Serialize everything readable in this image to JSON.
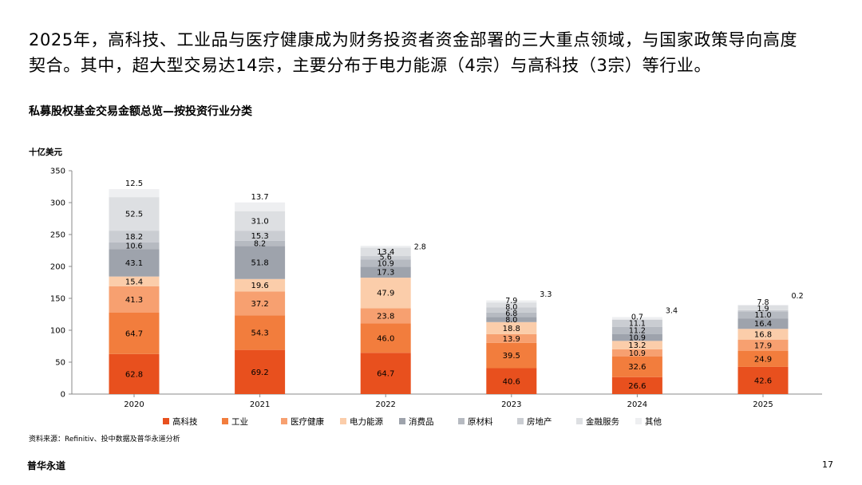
{
  "headline": {
    "line1": "2025年，高科技、工业品与医疗健康成为财务投资者资金部署的三大重点领域，与国家政策导向高度",
    "line2": "契合。其中，超大型交易达14宗，主要分布于电力能源（4宗）与高科技（3宗）等行业。"
  },
  "chart_title": "私募股权基金交易金额总览—按投资行业分类",
  "source_note": "资料来源：Refinitiv、投中数据及普华永道分析",
  "footer": {
    "brand": "普华永道",
    "page_number": "17"
  },
  "chart_data": {
    "type": "bar",
    "stacked": true,
    "unit_label": "十亿美元",
    "categories": [
      "2020",
      "2021",
      "2022",
      "2023",
      "2024",
      "2025"
    ],
    "ylim": [
      0,
      350
    ],
    "yticks": [
      0,
      50,
      100,
      150,
      200,
      250,
      300,
      350
    ],
    "legend_position": "bottom",
    "series": [
      {
        "name": "高科技",
        "color": "#E8501E",
        "values": [
          62.8,
          69.2,
          64.7,
          40.6,
          26.6,
          42.6
        ]
      },
      {
        "name": "工业",
        "color": "#F27D3D",
        "values": [
          64.7,
          54.3,
          46.0,
          39.5,
          32.6,
          24.9
        ]
      },
      {
        "name": "医疗健康",
        "color": "#F7A070",
        "values": [
          41.3,
          37.2,
          23.8,
          13.9,
          10.9,
          17.9
        ]
      },
      {
        "name": "电力能源",
        "color": "#FBCDAA",
        "values": [
          15.4,
          19.6,
          47.9,
          18.8,
          13.2,
          16.8
        ]
      },
      {
        "name": "消费品",
        "color": "#9EA3AC",
        "values": [
          43.1,
          51.8,
          17.3,
          8.0,
          10.9,
          16.4
        ]
      },
      {
        "name": "原材料",
        "color": "#B6BAC1",
        "values": [
          10.6,
          8.2,
          10.9,
          6.8,
          11.2,
          11.0
        ]
      },
      {
        "name": "房地产",
        "color": "#CACDD2",
        "values": [
          18.2,
          15.3,
          5.6,
          8.0,
          11.1,
          1.9
        ]
      },
      {
        "name": "金融服务",
        "color": "#DDDFE2",
        "values": [
          52.5,
          31.0,
          13.4,
          7.9,
          0.7,
          7.8
        ]
      },
      {
        "name": "其他",
        "color": "#EEEFF1",
        "values": [
          12.5,
          13.7,
          2.8,
          3.3,
          3.4,
          0.2
        ]
      }
    ]
  }
}
